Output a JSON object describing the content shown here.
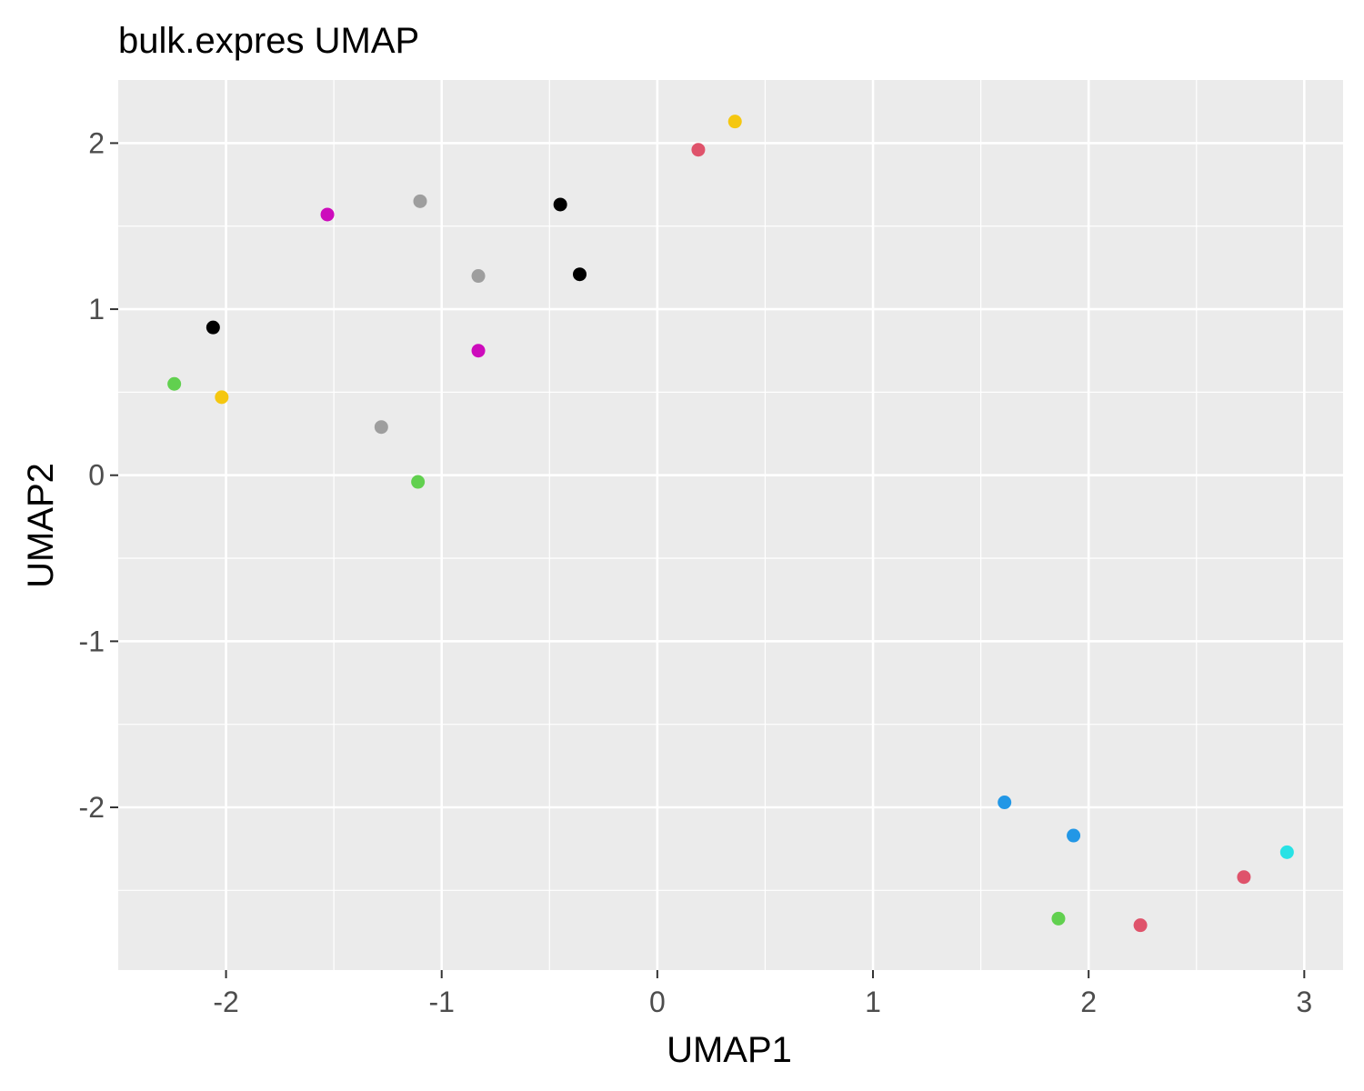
{
  "chart_data": {
    "type": "scatter",
    "title": "bulk.expres UMAP",
    "xlabel": "UMAP1",
    "ylabel": "UMAP2",
    "xlim": [
      -2.5,
      3.18
    ],
    "ylim": [
      -2.98,
      2.38
    ],
    "x_ticks": [
      -2,
      -1,
      0,
      1,
      2,
      3
    ],
    "y_ticks": [
      -2,
      -1,
      0,
      1,
      2
    ],
    "x_tick_labels": [
      "-2",
      "-1",
      "0",
      "1",
      "2",
      "3"
    ],
    "y_tick_labels": [
      "-2",
      "-1",
      "0",
      "1",
      "2"
    ],
    "grid": true,
    "legend": "none",
    "background": "#ebebeb",
    "gridline_color": "#ffffff",
    "points": [
      {
        "x": 0.36,
        "y": 2.13,
        "color": "#f5c710"
      },
      {
        "x": 0.19,
        "y": 1.96,
        "color": "#df536b"
      },
      {
        "x": -1.1,
        "y": 1.65,
        "color": "#9e9e9e"
      },
      {
        "x": -0.45,
        "y": 1.63,
        "color": "#000000"
      },
      {
        "x": -1.53,
        "y": 1.57,
        "color": "#cd0bbc"
      },
      {
        "x": -0.83,
        "y": 1.2,
        "color": "#9e9e9e"
      },
      {
        "x": -0.36,
        "y": 1.21,
        "color": "#000000"
      },
      {
        "x": -2.06,
        "y": 0.89,
        "color": "#000000"
      },
      {
        "x": -0.83,
        "y": 0.75,
        "color": "#cd0bbc"
      },
      {
        "x": -2.24,
        "y": 0.55,
        "color": "#61d04f"
      },
      {
        "x": -2.02,
        "y": 0.47,
        "color": "#f5c710"
      },
      {
        "x": -1.28,
        "y": 0.29,
        "color": "#9e9e9e"
      },
      {
        "x": -1.11,
        "y": -0.04,
        "color": "#61d04f"
      },
      {
        "x": 1.61,
        "y": -1.97,
        "color": "#2297e6"
      },
      {
        "x": 1.93,
        "y": -2.17,
        "color": "#2297e6"
      },
      {
        "x": 2.92,
        "y": -2.27,
        "color": "#28e2e5"
      },
      {
        "x": 2.72,
        "y": -2.42,
        "color": "#df536b"
      },
      {
        "x": 1.86,
        "y": -2.67,
        "color": "#61d04f"
      },
      {
        "x": 2.24,
        "y": -2.71,
        "color": "#df536b"
      }
    ]
  }
}
